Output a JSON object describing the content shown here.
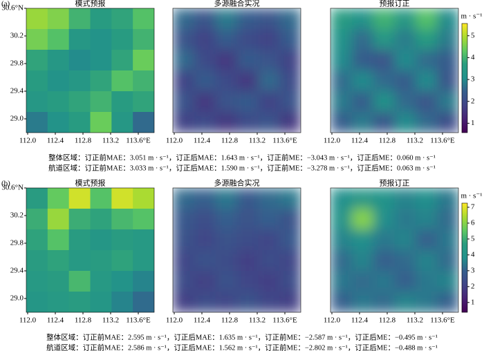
{
  "chart_data": [
    {
      "type": "heatmap",
      "panel_label": "(a)",
      "title": "模式预报",
      "smooth": false,
      "xlim": [
        111.98,
        113.83
      ],
      "ylim": [
        28.8,
        30.6
      ],
      "zlim": [
        0.57,
        5.56
      ],
      "xticks": [
        {
          "value": 112.0,
          "label": "112.0"
        },
        {
          "value": 112.4,
          "label": "112.4"
        },
        {
          "value": 112.8,
          "label": "112.8"
        },
        {
          "value": 113.2,
          "label": "113.2"
        },
        {
          "value": 113.6,
          "label": "113.6°E"
        }
      ],
      "yticks": [
        {
          "value": 30.6,
          "label": "30.6°N"
        },
        {
          "value": 30.2,
          "label": "30.2"
        },
        {
          "value": 29.8,
          "label": "29.8"
        },
        {
          "value": 29.4,
          "label": "29.4"
        },
        {
          "value": 29.0,
          "label": "29.0"
        }
      ],
      "values": [
        [
          4.8,
          4.6,
          4.0,
          3.6,
          3.8,
          4.2
        ],
        [
          4.5,
          4.2,
          3.4,
          3.2,
          3.6,
          4.0
        ],
        [
          3.8,
          3.4,
          3.0,
          3.2,
          3.8,
          4.4
        ],
        [
          3.6,
          3.2,
          3.4,
          3.8,
          4.2,
          4.0
        ],
        [
          3.4,
          3.6,
          3.8,
          4.0,
          3.6,
          3.8
        ],
        [
          2.8,
          3.2,
          3.6,
          4.4,
          3.4,
          2.6
        ]
      ]
    },
    {
      "type": "heatmap",
      "title": "多源融合实况",
      "smooth": true,
      "xlim": [
        111.98,
        113.83
      ],
      "ylim": [
        28.8,
        30.6
      ],
      "zlim": [
        0.57,
        5.56
      ],
      "xticks": [
        {
          "value": 112.0,
          "label": "112.0"
        },
        {
          "value": 112.4,
          "label": "112.4"
        },
        {
          "value": 112.8,
          "label": "112.8"
        },
        {
          "value": 113.2,
          "label": "113.2"
        },
        {
          "value": 113.6,
          "label": "113.6°E"
        }
      ],
      "values": [
        [
          2.6,
          2.2,
          2.8,
          2.4,
          2.2,
          2.6
        ],
        [
          2.2,
          1.8,
          2.4,
          2.0,
          1.8,
          2.4
        ],
        [
          2.6,
          2.0,
          1.6,
          2.4,
          2.2,
          1.8
        ],
        [
          1.8,
          2.4,
          2.0,
          1.6,
          2.6,
          2.0
        ],
        [
          2.2,
          1.6,
          2.2,
          2.4,
          1.8,
          2.2
        ],
        [
          1.8,
          2.0,
          1.6,
          2.0,
          2.2,
          1.6
        ]
      ]
    },
    {
      "type": "heatmap",
      "title": "预报订正",
      "smooth": true,
      "xlim": [
        111.98,
        113.83
      ],
      "ylim": [
        28.8,
        30.6
      ],
      "zlim": [
        0.57,
        5.56
      ],
      "zticks": [
        1,
        2,
        3,
        4,
        5
      ],
      "z_unit": "m · s⁻¹",
      "xticks": [
        {
          "value": 112.0,
          "label": "112.0"
        },
        {
          "value": 112.4,
          "label": "112.4"
        },
        {
          "value": 112.8,
          "label": "112.8"
        },
        {
          "value": 113.2,
          "label": "113.2"
        },
        {
          "value": 113.6,
          "label": "113.6°E"
        }
      ],
      "values": [
        [
          3.6,
          3.2,
          4.0,
          3.4,
          4.2,
          3.0
        ],
        [
          3.2,
          2.6,
          3.4,
          2.8,
          3.6,
          2.8
        ],
        [
          3.0,
          2.4,
          2.2,
          3.0,
          2.6,
          2.4
        ],
        [
          2.6,
          3.0,
          2.6,
          2.4,
          3.0,
          2.2
        ],
        [
          2.8,
          2.4,
          3.2,
          2.6,
          2.2,
          2.8
        ],
        [
          2.4,
          2.8,
          2.2,
          3.0,
          2.6,
          2.0
        ]
      ],
      "captions": [
        "整体区域：订正前MAE：3.051 m · s⁻¹，订正后MAE：1.643 m · s⁻¹，订正前ME：−3.043 m · s⁻¹，订正后ME：0.060 m · s⁻¹",
        "航道区域：订正前MAE：3.033 m · s⁻¹，订正后MAE：1.590 m · s⁻¹，订正前ME：−3.278 m · s⁻¹，订正后ME：0.063 m · s⁻¹"
      ]
    },
    {
      "type": "heatmap",
      "panel_label": "(b)",
      "title": "模式预报",
      "smooth": false,
      "xlim": [
        111.98,
        113.83
      ],
      "ylim": [
        28.8,
        30.6
      ],
      "zlim": [
        0.38,
        7.26
      ],
      "xticks": [
        {
          "value": 112.0,
          "label": "112.0"
        },
        {
          "value": 112.4,
          "label": "112.4"
        },
        {
          "value": 112.8,
          "label": "112.8"
        },
        {
          "value": 113.2,
          "label": "113.2"
        },
        {
          "value": 113.6,
          "label": "113.6°E"
        }
      ],
      "yticks": [
        {
          "value": 30.6,
          "label": "30.6°N"
        },
        {
          "value": 30.2,
          "label": "30.2"
        },
        {
          "value": 29.8,
          "label": "29.8"
        },
        {
          "value": 29.4,
          "label": "29.4"
        },
        {
          "value": 29.0,
          "label": "29.0"
        }
      ],
      "values": [
        [
          4.6,
          5.6,
          6.8,
          5.4,
          6.8,
          6.4
        ],
        [
          5.0,
          6.2,
          5.0,
          4.8,
          5.2,
          5.4
        ],
        [
          4.8,
          5.4,
          4.6,
          4.2,
          4.6,
          4.4
        ],
        [
          4.6,
          4.8,
          4.4,
          4.6,
          4.8,
          4.4
        ],
        [
          4.4,
          4.6,
          5.2,
          4.4,
          4.0,
          3.6
        ],
        [
          4.2,
          4.4,
          4.6,
          4.2,
          3.6,
          3.2
        ]
      ]
    },
    {
      "type": "heatmap",
      "title": "多源融合实况",
      "smooth": true,
      "xlim": [
        111.98,
        113.83
      ],
      "ylim": [
        28.8,
        30.6
      ],
      "zlim": [
        0.38,
        7.26
      ],
      "xticks": [
        {
          "value": 112.0,
          "label": "112.0"
        },
        {
          "value": 112.4,
          "label": "112.4"
        },
        {
          "value": 112.8,
          "label": "112.8"
        },
        {
          "value": 113.2,
          "label": "113.2"
        },
        {
          "value": 113.6,
          "label": "113.6°E"
        }
      ],
      "values": [
        [
          3.2,
          3.0,
          3.4,
          2.8,
          3.2,
          3.4
        ],
        [
          2.8,
          2.4,
          3.0,
          2.6,
          3.0,
          2.6
        ],
        [
          2.6,
          2.2,
          2.6,
          2.4,
          2.2,
          2.8
        ],
        [
          2.2,
          2.6,
          2.4,
          2.0,
          2.4,
          2.2
        ],
        [
          2.4,
          2.0,
          2.6,
          2.2,
          2.0,
          2.4
        ],
        [
          2.0,
          2.4,
          2.2,
          2.6,
          2.2,
          2.0
        ]
      ]
    },
    {
      "type": "heatmap",
      "title": "预报订正",
      "smooth": true,
      "xlim": [
        111.98,
        113.83
      ],
      "ylim": [
        28.8,
        30.6
      ],
      "zlim": [
        0.38,
        7.26
      ],
      "zticks": [
        1,
        2,
        3,
        4,
        5,
        6,
        7
      ],
      "z_unit": "m · s⁻¹",
      "xticks": [
        {
          "value": 112.0,
          "label": "112.0"
        },
        {
          "value": 112.4,
          "label": "112.4"
        },
        {
          "value": 112.8,
          "label": "112.8"
        },
        {
          "value": 113.2,
          "label": "113.2"
        },
        {
          "value": 113.6,
          "label": "113.6°E"
        }
      ],
      "values": [
        [
          3.8,
          4.2,
          4.0,
          3.6,
          3.8,
          3.4
        ],
        [
          4.0,
          6.0,
          3.8,
          3.4,
          3.6,
          3.2
        ],
        [
          3.6,
          3.8,
          3.4,
          3.6,
          3.0,
          3.4
        ],
        [
          3.2,
          3.6,
          3.0,
          3.2,
          3.6,
          3.2
        ],
        [
          3.4,
          3.2,
          3.4,
          3.0,
          3.4,
          3.6
        ],
        [
          3.0,
          3.4,
          3.2,
          3.6,
          3.4,
          3.0
        ]
      ],
      "captions": [
        "整体区域：订正前MAE：2.595 m · s⁻¹，订正后MAE：1.635 m · s⁻¹，订正前ME：−2.587 m · s⁻¹，订正后ME：−0.495 m · s⁻¹",
        "航道区域：订正前MAE：2.586 m · s⁻¹，订正后MAE：1.562 m · s⁻¹，订正前ME：−2.802 m · s⁻¹，订正后ME：−0.488 m · s⁻¹"
      ]
    }
  ]
}
